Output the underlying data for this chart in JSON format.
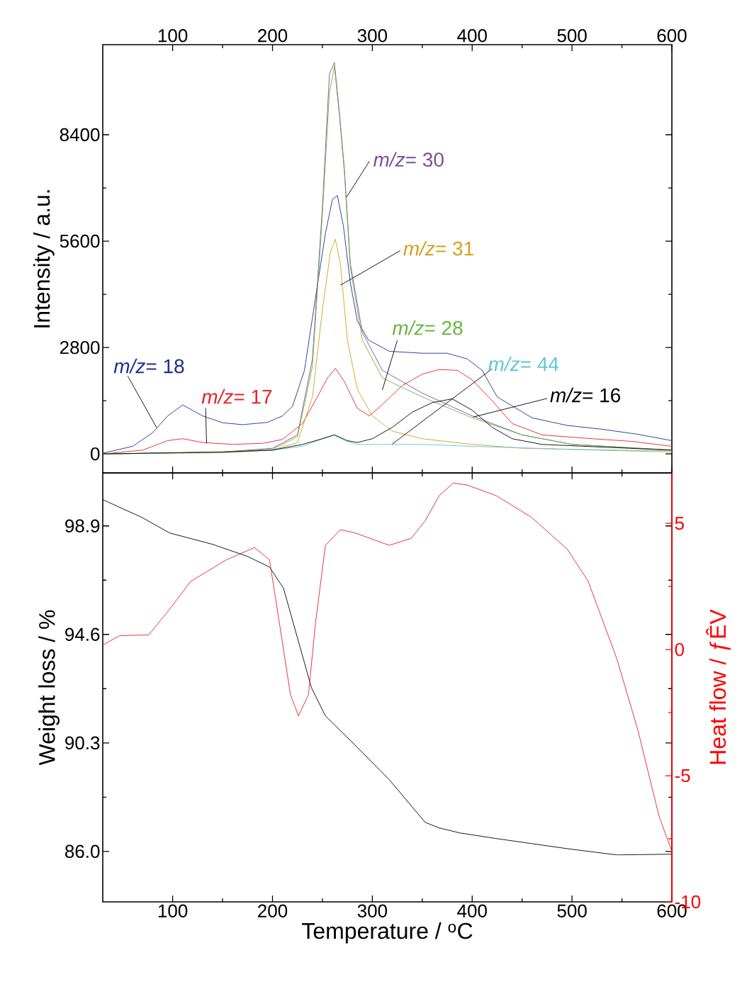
{
  "chart_data": [
    {
      "type": "line",
      "ylabel": "Intensity / a.u.",
      "xlim": [
        30,
        600
      ],
      "xticks": [
        100,
        200,
        300,
        400,
        500,
        600
      ],
      "ylim": [
        -500,
        10770
      ],
      "yticks": [
        0,
        2800,
        5600,
        8400
      ],
      "series": [
        {
          "name": "*m/z*= 18",
          "color": "#1f2f8f",
          "x": [
            30,
            60,
            80,
            95,
            110,
            130,
            150,
            170,
            195,
            210,
            220,
            232,
            243,
            253,
            260,
            265,
            271,
            278,
            285,
            296,
            317,
            350,
            375,
            395,
            410,
            425,
            460,
            495,
            530,
            565,
            600
          ],
          "values": [
            20,
            200,
            560,
            1000,
            1290,
            1000,
            820,
            770,
            830,
            1000,
            1250,
            2200,
            4100,
            5800,
            6700,
            6800,
            6000,
            4500,
            3500,
            3000,
            2700,
            2650,
            2650,
            2500,
            2200,
            1500,
            950,
            750,
            650,
            520,
            350
          ]
        },
        {
          "name": "*m/z*= 17",
          "color": "#e8202a",
          "x": [
            30,
            70,
            95,
            110,
            130,
            160,
            190,
            210,
            230,
            245,
            255,
            263,
            272,
            285,
            297,
            310,
            330,
            350,
            367,
            385,
            400,
            420,
            440,
            470,
            520,
            560,
            600
          ],
          "values": [
            0,
            100,
            350,
            400,
            300,
            250,
            280,
            380,
            800,
            1500,
            2000,
            2250,
            1900,
            1200,
            1000,
            1300,
            1800,
            2100,
            2220,
            2200,
            1950,
            1400,
            800,
            500,
            400,
            330,
            200
          ]
        },
        {
          "name": "*m/z*= 30",
          "color": "#7b4fa0",
          "x": [
            30,
            150,
            200,
            225,
            240,
            250,
            257,
            262,
            267,
            272,
            278,
            290,
            310,
            350,
            400,
            450,
            500,
            600
          ],
          "values": [
            0,
            50,
            150,
            500,
            2500,
            6500,
            10000,
            10300,
            9000,
            7500,
            5000,
            3200,
            2200,
            1600,
            1000,
            500,
            250,
            100
          ]
        },
        {
          "name": "*m/z*= 31",
          "color": "#d4a017",
          "x": [
            30,
            150,
            200,
            225,
            240,
            250,
            258,
            263,
            268,
            275,
            285,
            300,
            320,
            350,
            400,
            450,
            600
          ],
          "values": [
            0,
            30,
            100,
            300,
            1500,
            3800,
            5300,
            5650,
            5000,
            3000,
            1700,
            1000,
            600,
            400,
            250,
            150,
            50
          ]
        },
        {
          "name": "*m/z*= 28",
          "color": "#6ab43e",
          "x": [
            30,
            150,
            200,
            225,
            240,
            250,
            257,
            262,
            267,
            272,
            278,
            290,
            310,
            350,
            400,
            450,
            500,
            600
          ],
          "values": [
            0,
            50,
            120,
            450,
            2300,
            6300,
            9500,
            10200,
            8900,
            7400,
            4900,
            3000,
            2000,
            1500,
            950,
            500,
            250,
            100
          ]
        },
        {
          "name": "*m/z*= 44",
          "color": "#5bc8d8",
          "x": [
            30,
            150,
            200,
            230,
            250,
            262,
            272,
            285,
            350,
            400,
            500,
            600
          ],
          "values": [
            0,
            50,
            100,
            200,
            400,
            500,
            350,
            250,
            250,
            200,
            120,
            80
          ]
        },
        {
          "name": "*m/z*= 16",
          "color": "#000000",
          "x": [
            30,
            150,
            200,
            230,
            250,
            262,
            275,
            285,
            300,
            320,
            340,
            360,
            380,
            400,
            420,
            440,
            470,
            600
          ],
          "values": [
            0,
            50,
            100,
            250,
            400,
            500,
            350,
            300,
            400,
            700,
            1100,
            1350,
            1450,
            1150,
            700,
            400,
            250,
            100
          ]
        }
      ]
    },
    {
      "type": "line",
      "xlabel": "Temperature / $^{o}$C",
      "ylabel": "Weight loss / %",
      "y2label": "Heat flow / ƒÊV",
      "xlim": [
        30,
        600
      ],
      "xticks": [
        100,
        200,
        300,
        400,
        500,
        600
      ],
      "ylim": [
        84.0,
        101.0
      ],
      "yticks": [
        {
          "value": 86,
          "label": "86.0"
        },
        90.3,
        94.6,
        98.9
      ],
      "y2lim": [
        -10,
        7
      ],
      "y2ticks": [
        -10,
        -5,
        0,
        5
      ],
      "series": [
        {
          "color": "#000000",
          "x": [
            30,
            69,
            97,
            140,
            175,
            197,
            211,
            225,
            239,
            253,
            282,
            317,
            353,
            367,
            388,
            424,
            495,
            545,
            600
          ],
          "values": [
            99.94,
            99.24,
            98.62,
            98.17,
            97.69,
            97.27,
            96.43,
            94.46,
            92.49,
            91.37,
            90.24,
            88.84,
            87.15,
            86.93,
            86.73,
            86.51,
            86.11,
            85.86,
            85.89
          ]
        },
        {
          "color": "#e8202a",
          "axis": "y2",
          "x": [
            30,
            47,
            76,
            97,
            118,
            154,
            182,
            197,
            207,
            218,
            226,
            236,
            243,
            253,
            268,
            282,
            317,
            339,
            353,
            367,
            381,
            395,
            424,
            459,
            495,
            516,
            545,
            566,
            587,
            600
          ],
          "values": [
            0.18,
            0.55,
            0.58,
            1.6,
            2.7,
            3.56,
            4.04,
            3.56,
            1.03,
            -1.79,
            -2.63,
            -1.79,
            1.03,
            4.13,
            4.75,
            4.63,
            4.13,
            4.41,
            5.11,
            6.1,
            6.6,
            6.52,
            6.1,
            5.25,
            3.99,
            2.72,
            -0.38,
            -3.2,
            -6.58,
            -8.0
          ]
        }
      ]
    }
  ]
}
